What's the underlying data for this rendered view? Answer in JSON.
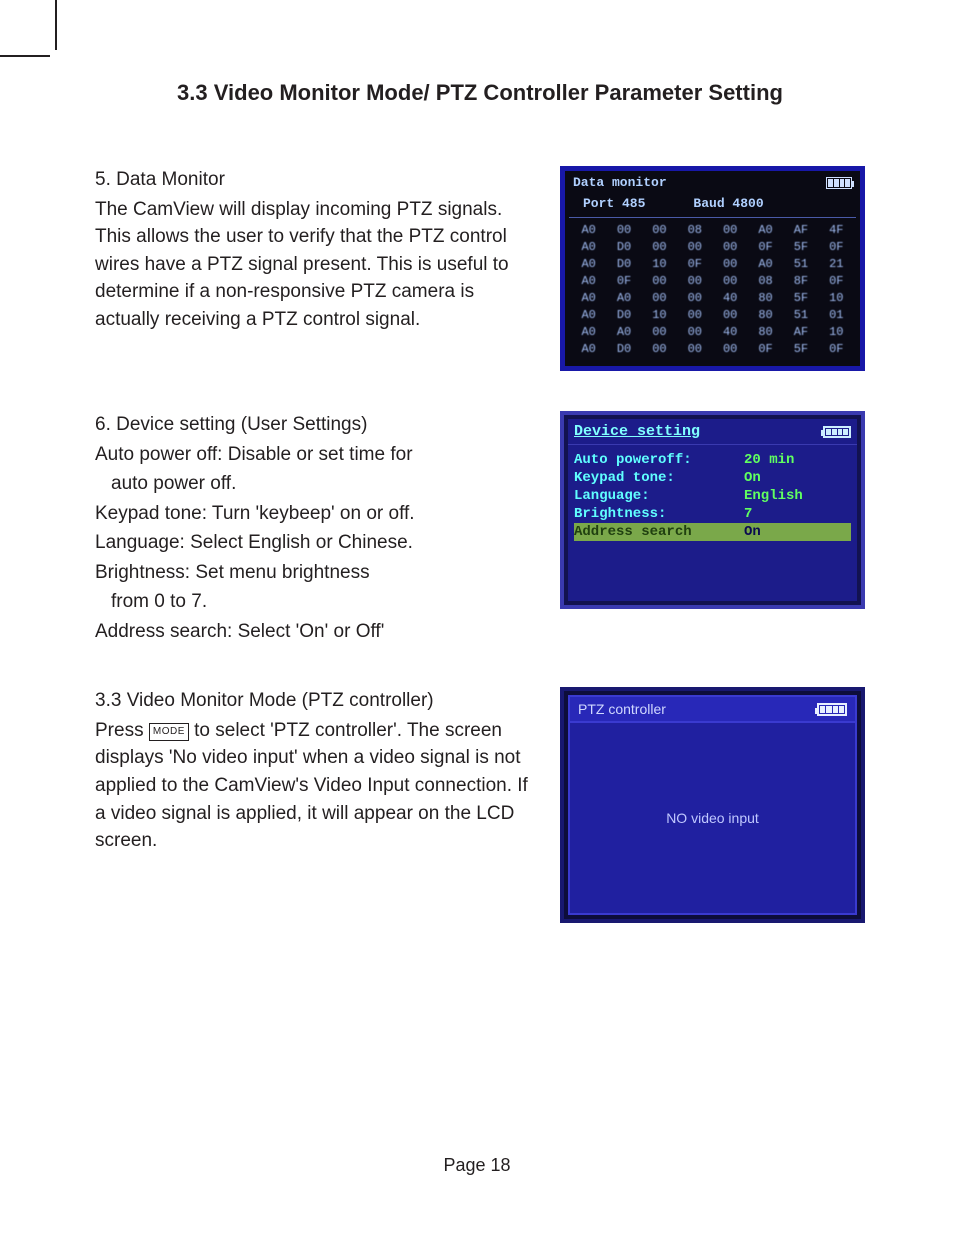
{
  "section_title": "3.3  Video Monitor Mode/ PTZ Controller Parameter Setting",
  "footer": "Page 18",
  "item5": {
    "heading": "5.    Data Monitor",
    "body": "The CamView will display incoming PTZ signals. This allows the user to verify that the PTZ control wires have a PTZ signal present. This is useful to determine if a non-responsive PTZ camera is actually receiving a PTZ control signal."
  },
  "item6": {
    "heading": "6.   Device setting (User Settings)",
    "l1a": "Auto power off: Disable or set time for",
    "l1b": "auto power off.",
    "l2": "Keypad tone: Turn 'keybeep' on or off.",
    "l3": "Language: Select English or Chinese.",
    "l4a": "Brightness: Set menu brightness",
    "l4b": "from 0 to 7.",
    "l5": "Address search: Select 'On' or Off'"
  },
  "item33": {
    "heading": "3.3    Video Monitor Mode (PTZ controller)",
    "pre": "Press ",
    "mode_key": "MODE",
    "post": " to select 'PTZ controller'. The screen displays 'No video input' when a video signal is not applied to the CamView's Video Input connection. If a video signal is applied, it will appear on the LCD screen."
  },
  "screen1": {
    "title": "Data monitor",
    "sub_port": "Port  485",
    "sub_baud": "Baud   4800",
    "grid": [
      [
        "A0",
        "00",
        "00",
        "08",
        "00",
        "A0",
        "AF",
        "4F"
      ],
      [
        "A0",
        "D0",
        "00",
        "00",
        "00",
        "0F",
        "5F",
        "0F"
      ],
      [
        "A0",
        "D0",
        "10",
        "0F",
        "00",
        "A0",
        "51",
        "21"
      ],
      [
        "A0",
        "0F",
        "00",
        "00",
        "00",
        "08",
        "8F",
        "0F"
      ],
      [
        "A0",
        "A0",
        "00",
        "00",
        "40",
        "80",
        "5F",
        "10"
      ],
      [
        "A0",
        "D0",
        "10",
        "00",
        "00",
        "80",
        "51",
        "01"
      ],
      [
        "A0",
        "A0",
        "00",
        "00",
        "40",
        "80",
        "AF",
        "10"
      ],
      [
        "A0",
        "D0",
        "00",
        "00",
        "00",
        "0F",
        "5F",
        "0F"
      ]
    ]
  },
  "screen2": {
    "title": "Device setting",
    "rows": [
      {
        "label": "Auto poweroff:",
        "value": "20 min",
        "hl": false
      },
      {
        "label": "Keypad tone:",
        "value": "On",
        "hl": false
      },
      {
        "label": "Language:",
        "value": "English",
        "hl": false
      },
      {
        "label": "Brightness:",
        "value": "7",
        "hl": false
      },
      {
        "label": "Address search",
        "value": "On",
        "hl": true
      }
    ]
  },
  "screen3": {
    "title": "PTZ  controller",
    "message": "NO  video  input"
  }
}
